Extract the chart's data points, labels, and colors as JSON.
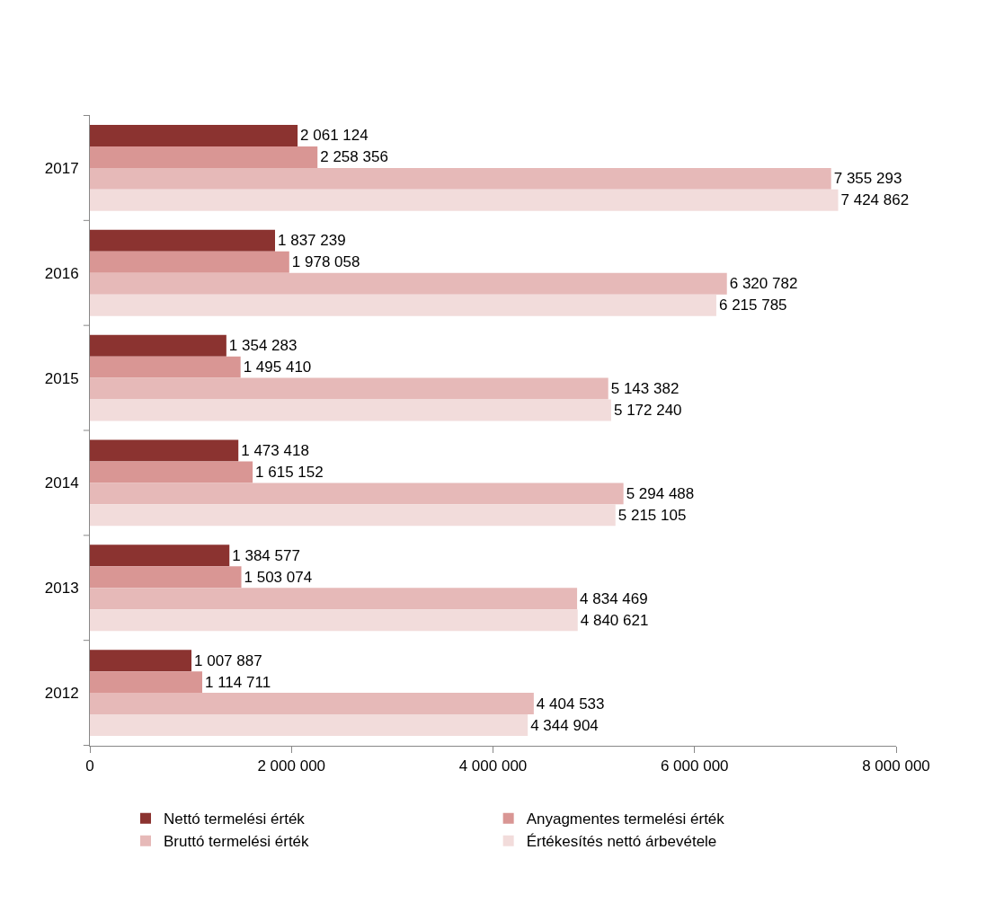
{
  "chart_data": {
    "type": "bar",
    "orientation": "horizontal",
    "categories": [
      "2017",
      "2016",
      "2015",
      "2014",
      "2013",
      "2012"
    ],
    "series": [
      {
        "name": "Nettó termelési érték",
        "color": "#8b3330",
        "values": [
          2061124,
          1837239,
          1354283,
          1473418,
          1384577,
          1007887
        ]
      },
      {
        "name": "Anyagmentes termelési érték",
        "color": "#d99694",
        "values": [
          2258356,
          1978058,
          1495410,
          1615152,
          1503074,
          1114711
        ]
      },
      {
        "name": "Bruttó termelési érték",
        "color": "#e6b9b8",
        "values": [
          7355293,
          6320782,
          5143382,
          5294488,
          4834469,
          4404533
        ]
      },
      {
        "name": "Értékesítés nettó árbevétele",
        "color": "#f2dcdb",
        "values": [
          7424862,
          6215785,
          5172240,
          5215105,
          4840621,
          4344904
        ]
      }
    ],
    "xlim": [
      0,
      8000000
    ],
    "xticks": [
      0,
      {
        "value": 2000000,
        "label": "2 000 000"
      },
      {
        "value": 4000000,
        "label": "4 000 000"
      },
      {
        "value": 6000000,
        "label": "6 000 000"
      },
      {
        "value": 8000000,
        "label": "8 000 000"
      }
    ],
    "data_labels": true,
    "legend": "bottom"
  }
}
